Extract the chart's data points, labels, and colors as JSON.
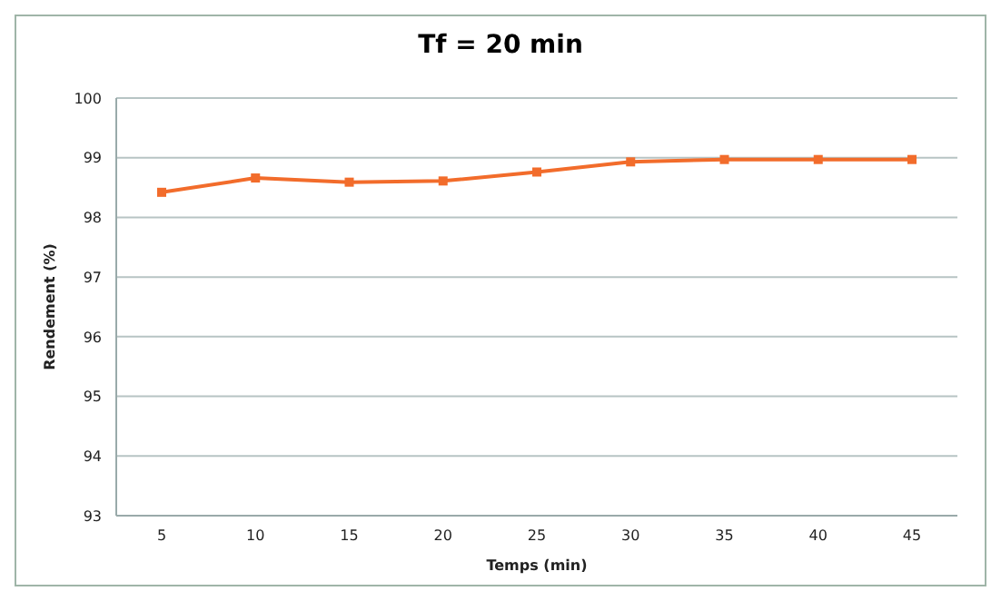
{
  "chart_data": {
    "type": "line",
    "title": "Tf = 20 min",
    "xlabel": "Temps (min)",
    "ylabel": "Rendement (%)",
    "categories": [
      "5",
      "10",
      "15",
      "20",
      "25",
      "30",
      "35",
      "40",
      "45"
    ],
    "series": [
      {
        "color": "#f26c2b",
        "values": [
          98.42,
          98.66,
          98.59,
          98.61,
          98.76,
          98.93,
          98.97,
          98.97,
          98.97
        ]
      }
    ],
    "ylim": [
      93,
      100
    ],
    "yticks": [
      93,
      94,
      95,
      96,
      97,
      98,
      99,
      100
    ],
    "grid": "y",
    "marker": "square",
    "legend": false
  }
}
